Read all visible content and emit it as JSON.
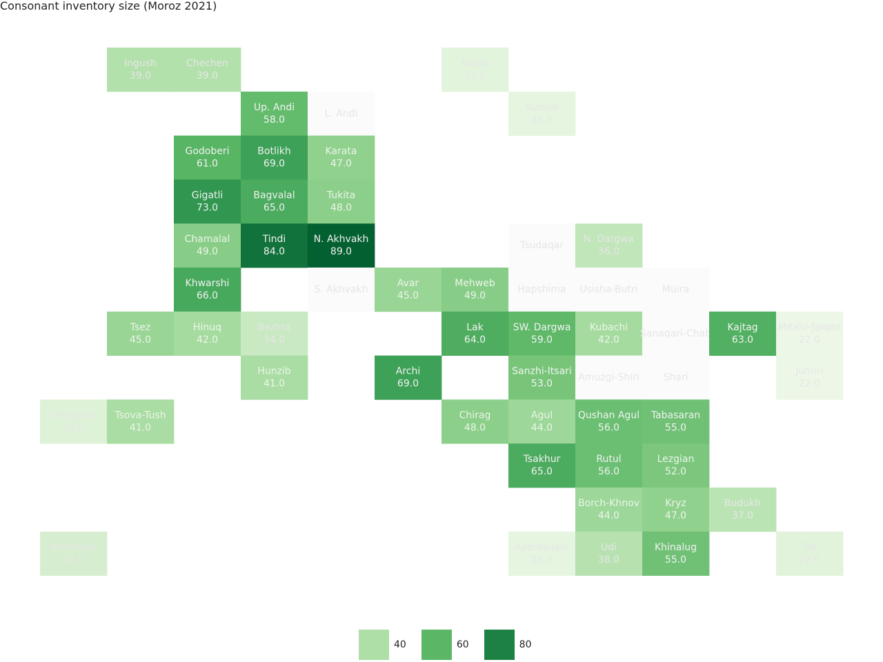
{
  "chart_data": {
    "type": "heatmap",
    "title": "Consonant inventory size (Moroz 2021)",
    "colors": {
      "no_data": "#fbfbfb",
      "no_data_text": "#e6e6e6",
      "scale": [
        {
          "value": 20,
          "color": "#f0f9ec"
        },
        {
          "value": 30,
          "color": "#daf0d3"
        },
        {
          "value": 40,
          "color": "#aedfa7"
        },
        {
          "value": 50,
          "color": "#84cb83"
        },
        {
          "value": 60,
          "color": "#5bb766"
        },
        {
          "value": 70,
          "color": "#3a9f55"
        },
        {
          "value": 80,
          "color": "#1d8144"
        },
        {
          "value": 90,
          "color": "#005c2e"
        }
      ]
    },
    "legend": [
      {
        "label": "40",
        "color": "#aedfa7"
      },
      {
        "label": "60",
        "color": "#5bb766"
      },
      {
        "label": "80",
        "color": "#1d8144"
      }
    ],
    "tiles": [
      {
        "name": "Ingush",
        "value": "39.0",
        "row": 0,
        "col": 1
      },
      {
        "name": "Chechen",
        "value": "39.0",
        "row": 0,
        "col": 2
      },
      {
        "name": "Nogai",
        "value": "26.0",
        "row": 0,
        "col": 6
      },
      {
        "name": "Up. Andi",
        "value": "58.0",
        "row": 1,
        "col": 3
      },
      {
        "name": "L. Andi",
        "value": null,
        "row": 1,
        "col": 4
      },
      {
        "name": "Kumyk",
        "value": "25.0",
        "row": 1,
        "col": 7
      },
      {
        "name": "Godoberi",
        "value": "61.0",
        "row": 2,
        "col": 2
      },
      {
        "name": "Botlikh",
        "value": "69.0",
        "row": 2,
        "col": 3
      },
      {
        "name": "Karata",
        "value": "47.0",
        "row": 2,
        "col": 4
      },
      {
        "name": "Gigatli",
        "value": "73.0",
        "row": 3,
        "col": 2
      },
      {
        "name": "Bagvalal",
        "value": "65.0",
        "row": 3,
        "col": 3
      },
      {
        "name": "Tukita",
        "value": "48.0",
        "row": 3,
        "col": 4
      },
      {
        "name": "Chamalal",
        "value": "49.0",
        "row": 4,
        "col": 2
      },
      {
        "name": "Tindi",
        "value": "84.0",
        "row": 4,
        "col": 3
      },
      {
        "name": "N. Akhvakh",
        "value": "89.0",
        "row": 4,
        "col": 4
      },
      {
        "name": "Tsudaqar",
        "value": null,
        "row": 4,
        "col": 7
      },
      {
        "name": "N. Dargwa",
        "value": "36.0",
        "row": 4,
        "col": 8
      },
      {
        "name": "Khwarshi",
        "value": "66.0",
        "row": 5,
        "col": 2
      },
      {
        "name": "S. Akhvakh",
        "value": null,
        "row": 5,
        "col": 4
      },
      {
        "name": "Avar",
        "value": "45.0",
        "row": 5,
        "col": 5
      },
      {
        "name": "Mehweb",
        "value": "49.0",
        "row": 5,
        "col": 6
      },
      {
        "name": "Hapshima",
        "value": null,
        "row": 5,
        "col": 7
      },
      {
        "name": "Usisha-Butri",
        "value": null,
        "row": 5,
        "col": 8
      },
      {
        "name": "Muira",
        "value": null,
        "row": 5,
        "col": 9
      },
      {
        "name": "Tsez",
        "value": "45.0",
        "row": 6,
        "col": 1
      },
      {
        "name": "Hinuq",
        "value": "42.0",
        "row": 6,
        "col": 2
      },
      {
        "name": "Bezhta",
        "value": "34.0",
        "row": 6,
        "col": 3
      },
      {
        "name": "Lak",
        "value": "64.0",
        "row": 6,
        "col": 6
      },
      {
        "name": "SW. Dargwa",
        "value": "59.0",
        "row": 6,
        "col": 7
      },
      {
        "name": "Kubachi",
        "value": "42.0",
        "row": 6,
        "col": 8
      },
      {
        "name": "Sanaqari-Chab",
        "value": null,
        "row": 6,
        "col": 9
      },
      {
        "name": "Kajtag",
        "value": "63.0",
        "row": 6,
        "col": 10
      },
      {
        "name": "Mitahi-Jalqan",
        "value": "22.0",
        "row": 6,
        "col": 11
      },
      {
        "name": "Hunzib",
        "value": "41.0",
        "row": 7,
        "col": 3
      },
      {
        "name": "Archi",
        "value": "69.0",
        "row": 7,
        "col": 5
      },
      {
        "name": "Sanzhi-Itsari",
        "value": "53.0",
        "row": 7,
        "col": 7
      },
      {
        "name": "Amuzgi-Shiri",
        "value": null,
        "row": 7,
        "col": 8
      },
      {
        "name": "Shari",
        "value": null,
        "row": 7,
        "col": 9
      },
      {
        "name": "Juhuri",
        "value": "22.0",
        "row": 7,
        "col": 11
      },
      {
        "name": "Georgian",
        "value": "28.0",
        "row": 8,
        "col": 0
      },
      {
        "name": "Tsova-Tush",
        "value": "41.0",
        "row": 8,
        "col": 1
      },
      {
        "name": "Chirag",
        "value": "48.0",
        "row": 8,
        "col": 6
      },
      {
        "name": "Agul",
        "value": "44.0",
        "row": 8,
        "col": 7
      },
      {
        "name": "Qushan Agul",
        "value": "56.0",
        "row": 8,
        "col": 8
      },
      {
        "name": "Tabasaran",
        "value": "55.0",
        "row": 8,
        "col": 9
      },
      {
        "name": "Tsakhur",
        "value": "65.0",
        "row": 9,
        "col": 7
      },
      {
        "name": "Rutul",
        "value": "56.0",
        "row": 9,
        "col": 8
      },
      {
        "name": "Lezgian",
        "value": "52.0",
        "row": 9,
        "col": 9
      },
      {
        "name": "Borch-Khnov",
        "value": "44.0",
        "row": 10,
        "col": 8
      },
      {
        "name": "Kryz",
        "value": "47.0",
        "row": 10,
        "col": 9
      },
      {
        "name": "Budukh",
        "value": "37.0",
        "row": 10,
        "col": 10
      },
      {
        "name": "Armenian",
        "value": "31.0",
        "row": 11,
        "col": 0
      },
      {
        "name": "Azerbaijani",
        "value": "25.0",
        "row": 11,
        "col": 7
      },
      {
        "name": "Udi",
        "value": "38.0",
        "row": 11,
        "col": 8
      },
      {
        "name": "Khinalug",
        "value": "55.0",
        "row": 11,
        "col": 9
      },
      {
        "name": "Tat",
        "value": "27.0",
        "row": 11,
        "col": 11
      }
    ]
  }
}
